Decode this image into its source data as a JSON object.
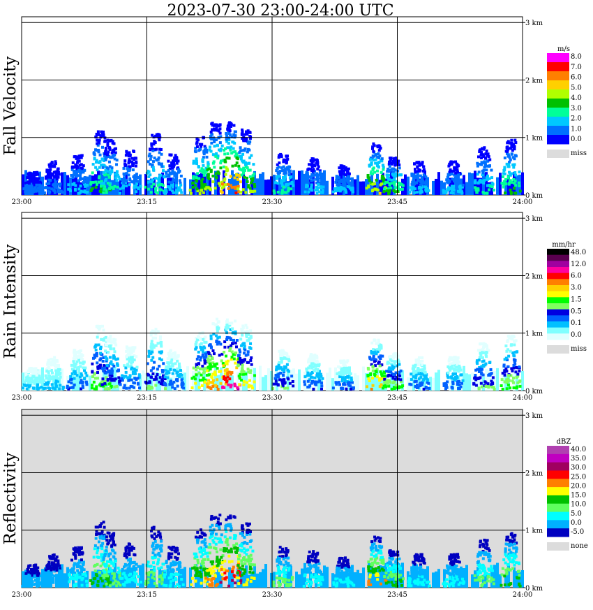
{
  "title": "2023-07-30   23:00-24:00 UTC",
  "chart_data": [
    {
      "type": "heatmap",
      "panel_label": "Fall Velocity",
      "x_ticks": [
        "23:00",
        "23:15",
        "23:30",
        "23:45",
        "24:00"
      ],
      "y_ticks": [
        "0 km",
        "1 km",
        "2 km",
        "3 km"
      ],
      "ylim": [
        0,
        3.1
      ],
      "grid": true,
      "legend": {
        "unit": "m/s",
        "labels": [
          "8.0",
          "7.0",
          "6.0",
          "5.0",
          "4.0",
          "3.0",
          "2.0",
          "1.0",
          "0.0"
        ],
        "colors": [
          "#ff00ff",
          "#ff0000",
          "#ff7f00",
          "#ffd000",
          "#b0ff00",
          "#00c000",
          "#00ff99",
          "#00c8ff",
          "#0070ff",
          "#0000ff"
        ],
        "missing_label": "miss",
        "missing_color": "#dcdcdc"
      },
      "background": "#ffffff"
    },
    {
      "type": "heatmap",
      "panel_label": "Rain Intensity",
      "x_ticks": [
        "23:00",
        "23:15",
        "23:30",
        "23:45",
        "24:00"
      ],
      "y_ticks": [
        "0 km",
        "1 km",
        "2 km",
        "3 km"
      ],
      "ylim": [
        0,
        3.1
      ],
      "grid": true,
      "legend": {
        "unit": "mm/hr",
        "labels": [
          "48.0",
          "12.0",
          "6.0",
          "3.0",
          "1.5",
          "0.5",
          "0.1",
          "0.0"
        ],
        "colors": [
          "#000000",
          "#5a0050",
          "#a000a0",
          "#ff00a0",
          "#ff0000",
          "#ff7f00",
          "#ffd000",
          "#ffff00",
          "#00ff00",
          "#80ff60",
          "#0000e0",
          "#0060ff",
          "#00c0ff",
          "#80ffff",
          "#e0ffff"
        ],
        "missing_label": "miss",
        "missing_color": "#dcdcdc"
      },
      "background": "#ffffff"
    },
    {
      "type": "heatmap",
      "panel_label": "Reflectivity",
      "x_ticks": [
        "23:00",
        "23:15",
        "23:30",
        "23:45",
        "24:00"
      ],
      "y_ticks": [
        "0 km",
        "1 km",
        "2 km",
        "3 km"
      ],
      "ylim": [
        0,
        3.1
      ],
      "grid": true,
      "legend": {
        "unit": "dBZ",
        "labels": [
          "40.0",
          "35.0",
          "30.0",
          "25.0",
          "20.0",
          "15.0",
          "10.0",
          "5.0",
          "0.0",
          "-5.0"
        ],
        "colors": [
          "#b040b0",
          "#c000c0",
          "#a00060",
          "#ff0000",
          "#ff7f00",
          "#ffff00",
          "#00c000",
          "#60ff60",
          "#00ffff",
          "#00b0ff",
          "#0000c0"
        ],
        "missing_label": "none",
        "missing_color": "#dcdcdc"
      },
      "background": "#dcdcdc"
    }
  ]
}
